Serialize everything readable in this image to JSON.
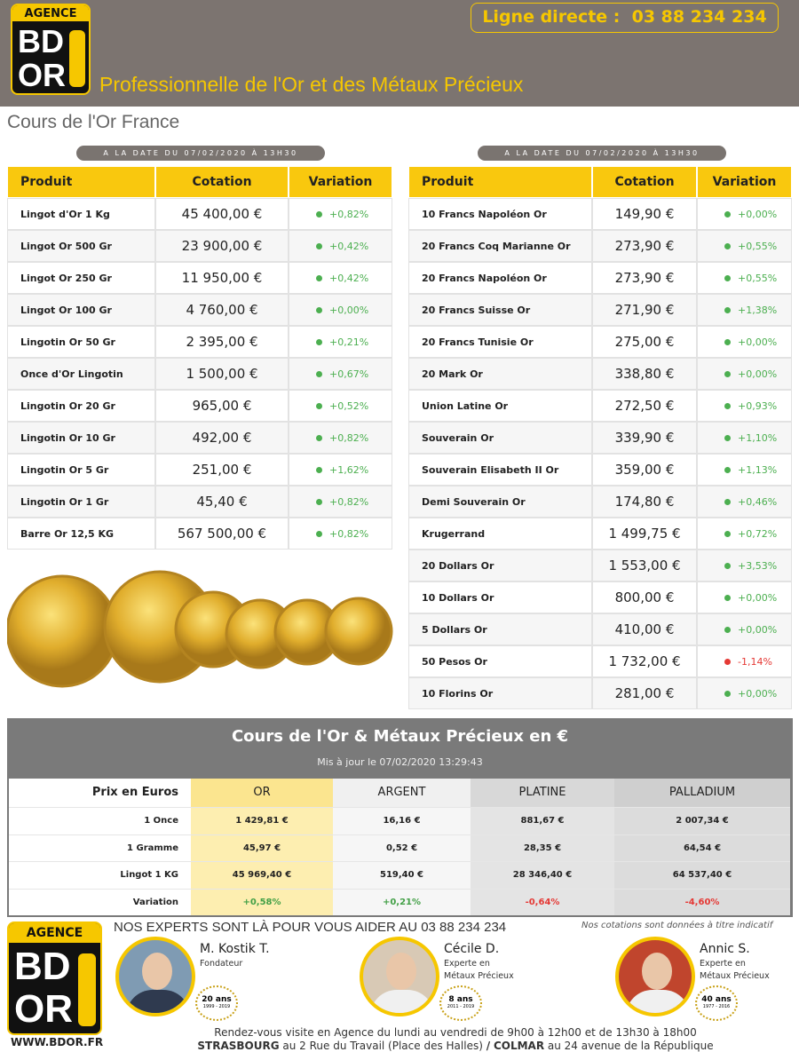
{
  "header": {
    "logo": {
      "top": "AGENCE",
      "line1": "BD",
      "line2": "OR"
    },
    "phone_label": "Ligne directe :",
    "phone": "03 88 234 234",
    "tagline": "Professionnelle de l'Or et des Métaux Précieux"
  },
  "page_title": "Cours de l'Or France",
  "tables": [
    {
      "date": "A LA DATE DU 07/02/2020 À 13H30",
      "columns": [
        "Produit",
        "Cotation",
        "Variation"
      ],
      "rows": [
        [
          "Lingot d'Or 1 Kg",
          "45 400,00 €",
          "+0,82%"
        ],
        [
          "Lingot Or 500 Gr",
          "23 900,00 €",
          "+0,42%"
        ],
        [
          "Lingot Or 250 Gr",
          "11 950,00 €",
          "+0,42%"
        ],
        [
          "Lingot Or 100 Gr",
          "4 760,00 €",
          "+0,00%"
        ],
        [
          "Lingotin Or 50 Gr",
          "2 395,00 €",
          "+0,21%"
        ],
        [
          "Once d'Or Lingotin",
          "1 500,00 €",
          "+0,67%"
        ],
        [
          "Lingotin Or 20 Gr",
          "965,00 €",
          "+0,52%"
        ],
        [
          "Lingotin Or 10 Gr",
          "492,00 €",
          "+0,82%"
        ],
        [
          "Lingotin Or 5 Gr",
          "251,00 €",
          "+1,62%"
        ],
        [
          "Lingotin Or 1 Gr",
          "45,40 €",
          "+0,82%"
        ],
        [
          "Barre Or 12,5 KG",
          "567 500,00 €",
          "+0,82%"
        ]
      ]
    },
    {
      "date": "A LA DATE DU 07/02/2020 À 13H30",
      "columns": [
        "Produit",
        "Cotation",
        "Variation"
      ],
      "rows": [
        [
          "10 Francs Napoléon Or",
          "149,90 €",
          "+0,00%"
        ],
        [
          "20 Francs Coq Marianne Or",
          "273,90 €",
          "+0,55%"
        ],
        [
          "20 Francs Napoléon Or",
          "273,90 €",
          "+0,55%"
        ],
        [
          "20 Francs Suisse Or",
          "271,90 €",
          "+1,38%"
        ],
        [
          "20 Francs Tunisie Or",
          "275,00 €",
          "+0,00%"
        ],
        [
          "20 Mark Or",
          "338,80 €",
          "+0,00%"
        ],
        [
          "Union Latine Or",
          "272,50 €",
          "+0,93%"
        ],
        [
          "Souverain Or",
          "339,90 €",
          "+1,10%"
        ],
        [
          "Souverain Elisabeth II Or",
          "359,00 €",
          "+1,13%"
        ],
        [
          "Demi Souverain Or",
          "174,80 €",
          "+0,46%"
        ],
        [
          "Krugerrand",
          "1 499,75 €",
          "+0,72%"
        ],
        [
          "20 Dollars Or",
          "1 553,00 €",
          "+3,53%"
        ],
        [
          "10 Dollars Or",
          "800,00 €",
          "+0,00%"
        ],
        [
          "5 Dollars Or",
          "410,00 €",
          "+0,00%"
        ],
        [
          "50 Pesos Or",
          "1 732,00 €",
          "-1,14%"
        ],
        [
          "10 Florins Or",
          "281,00 €",
          "+0,00%"
        ]
      ]
    }
  ],
  "metals": {
    "title": "Cours de l'Or & Métaux Précieux en €",
    "updated": "Mis à jour le 07/02/2020 13:29:43",
    "columns": [
      "Prix en Euros",
      "OR",
      "ARGENT",
      "PLATINE",
      "PALLADIUM"
    ],
    "rows": [
      [
        "1 Once",
        "1 429,81 €",
        "16,16 €",
        "881,67 €",
        "2 007,34 €"
      ],
      [
        "1 Gramme",
        "45,97 €",
        "0,52 €",
        "28,35 €",
        "64,54 €"
      ],
      [
        "Lingot 1 KG",
        "45 969,40 €",
        "519,40 €",
        "28 346,40 €",
        "64 537,40 €"
      ],
      [
        "Variation",
        "+0,58%",
        "+0,21%",
        "-0,64%",
        "-4,60%"
      ]
    ]
  },
  "footer": {
    "logo": {
      "top": "AGENCE",
      "line1": "BD",
      "line2": "OR"
    },
    "website": "WWW.BDOR.FR",
    "headline": "NOS EXPERTS SONT LÀ POUR VOUS AIDER AU 03 88 234 234",
    "disclaimer": "Nos cotations sont données à titre indicatif",
    "experts": [
      {
        "name": "M. Kostik T.",
        "role": [
          "Fondateur"
        ],
        "badge": "20 ans",
        "years": "1999 - 2019"
      },
      {
        "name": "Cécile D.",
        "role": [
          "Experte en",
          "Métaux Précieux"
        ],
        "badge": "8 ans",
        "years": "2011 - 2019"
      },
      {
        "name": "Annic S.",
        "role": [
          "Experte en",
          "Métaux Précieux"
        ],
        "badge": "40 ans",
        "years": "1977 - 2016"
      }
    ],
    "hours": "Rendez-vous visite en Agence du lundi au vendredi de 9h00 à 12h00 et de 13h30 à 18h00",
    "address": [
      "STRASBOURG",
      "au 2 Rue du Travail (Place des Halles)",
      "/",
      "COLMAR",
      "au 24 avenue de la République"
    ]
  }
}
